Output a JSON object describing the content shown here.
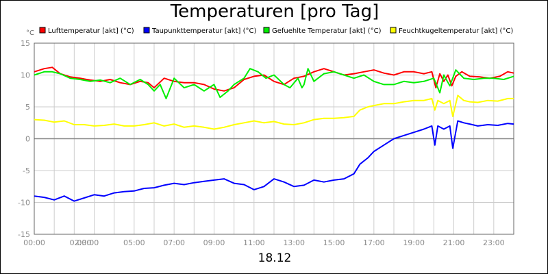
{
  "chart_data": {
    "type": "line",
    "title": "Temperaturen [pro Tag]",
    "subtitle": "18.12",
    "ylabel": "°C",
    "xlabel": "",
    "ylim": [
      -15,
      15
    ],
    "xlim": [
      0,
      24
    ],
    "yticks": [
      -15,
      -10,
      -5,
      0,
      5,
      10,
      15
    ],
    "xticks": [
      {
        "hour": 0,
        "label": "00:00"
      },
      {
        "hour": 2,
        "label": "02:00"
      },
      {
        "hour": 3,
        "label": "03:00"
      },
      {
        "hour": 5,
        "label": "05:00"
      },
      {
        "hour": 7,
        "label": "07:00"
      },
      {
        "hour": 9,
        "label": "09:00"
      },
      {
        "hour": 11,
        "label": "11:00"
      },
      {
        "hour": 13,
        "label": "13:00"
      },
      {
        "hour": 15,
        "label": "15:00"
      },
      {
        "hour": 17,
        "label": "17:00"
      },
      {
        "hour": 19,
        "label": "19:00"
      },
      {
        "hour": 21,
        "label": "21:00"
      },
      {
        "hour": 23,
        "label": "23:00"
      }
    ],
    "grid": true,
    "legend_position": "top",
    "series": [
      {
        "name": "Lufttemperatur [akt] (°C)",
        "color": "#ff0000",
        "x": [
          0,
          0.5,
          0.9,
          1.3,
          1.8,
          2.3,
          2.8,
          3.3,
          3.8,
          4.3,
          4.8,
          5.3,
          5.7,
          6.0,
          6.5,
          7.0,
          7.5,
          8.0,
          8.5,
          9.0,
          9.5,
          10.0,
          10.5,
          11.0,
          11.5,
          12.0,
          12.5,
          13.0,
          13.5,
          14.0,
          14.5,
          15.0,
          15.5,
          16.0,
          16.5,
          17.0,
          17.5,
          18.0,
          18.5,
          19.0,
          19.5,
          19.9,
          20.1,
          20.3,
          20.5,
          20.7,
          20.9,
          21.1,
          21.4,
          21.8,
          22.3,
          22.8,
          23.3,
          23.7,
          24.0
        ],
        "y": [
          10.5,
          11.0,
          11.2,
          10.2,
          9.7,
          9.5,
          9.2,
          9.0,
          9.3,
          8.8,
          8.5,
          9.0,
          8.8,
          8.0,
          9.5,
          9.0,
          8.8,
          8.8,
          8.5,
          7.8,
          7.5,
          8.0,
          9.3,
          9.8,
          10.0,
          9.0,
          8.5,
          9.5,
          9.8,
          10.5,
          11.0,
          10.5,
          10.0,
          10.2,
          10.5,
          10.8,
          10.3,
          10.0,
          10.5,
          10.5,
          10.2,
          10.5,
          8.0,
          10.2,
          9.0,
          10.0,
          8.3,
          9.8,
          10.5,
          9.8,
          9.7,
          9.5,
          9.8,
          10.5,
          10.3
        ]
      },
      {
        "name": "Taupunkttemperatur [akt] (°C)",
        "color": "#0000ff",
        "x": [
          0,
          0.5,
          1.0,
          1.5,
          2.0,
          2.5,
          3.0,
          3.5,
          4.0,
          4.5,
          5.0,
          5.5,
          6.0,
          6.5,
          7.0,
          7.5,
          8.0,
          8.5,
          9.0,
          9.5,
          10.0,
          10.5,
          11.0,
          11.5,
          12.0,
          12.5,
          13.0,
          13.5,
          14.0,
          14.5,
          15.0,
          15.5,
          16.0,
          16.3,
          16.7,
          17.0,
          17.5,
          18.0,
          18.5,
          19.0,
          19.5,
          19.9,
          20.05,
          20.2,
          20.5,
          20.8,
          20.95,
          21.2,
          21.5,
          21.8,
          22.2,
          22.7,
          23.2,
          23.7,
          24.0
        ],
        "y": [
          -9.0,
          -9.2,
          -9.6,
          -9.0,
          -9.8,
          -9.3,
          -8.8,
          -9.0,
          -8.5,
          -8.3,
          -8.2,
          -7.8,
          -7.7,
          -7.3,
          -7.0,
          -7.2,
          -6.9,
          -6.7,
          -6.5,
          -6.3,
          -7.0,
          -7.2,
          -8.0,
          -7.5,
          -6.3,
          -6.8,
          -7.5,
          -7.3,
          -6.5,
          -6.8,
          -6.5,
          -6.3,
          -5.5,
          -4.0,
          -3.0,
          -2.0,
          -1.0,
          0.0,
          0.5,
          1.0,
          1.5,
          2.0,
          -1.0,
          2.0,
          1.5,
          2.0,
          -1.5,
          2.8,
          2.5,
          2.3,
          2.0,
          2.2,
          2.1,
          2.4,
          2.3
        ]
      },
      {
        "name": "Gefuehlte Temperatur [akt] (°C)",
        "color": "#00ee00",
        "x": [
          0,
          0.5,
          0.9,
          1.3,
          1.8,
          2.3,
          2.8,
          3.3,
          3.8,
          4.3,
          4.8,
          5.3,
          5.7,
          6.0,
          6.3,
          6.6,
          7.0,
          7.5,
          8.0,
          8.5,
          9.0,
          9.3,
          9.7,
          10.0,
          10.5,
          10.8,
          11.2,
          11.6,
          12.0,
          12.5,
          12.8,
          13.2,
          13.4,
          13.5,
          13.7,
          14.0,
          14.5,
          15.0,
          15.5,
          16.0,
          16.5,
          17.0,
          17.5,
          18.0,
          18.5,
          19.0,
          19.5,
          20.0,
          20.3,
          20.5,
          20.8,
          21.1,
          21.5,
          22.0,
          22.5,
          23.0,
          23.5,
          24.0
        ],
        "y": [
          10.0,
          10.5,
          10.5,
          10.2,
          9.5,
          9.3,
          9.0,
          9.2,
          8.8,
          9.5,
          8.5,
          9.3,
          8.5,
          7.5,
          8.5,
          6.3,
          9.5,
          8.0,
          8.5,
          7.5,
          8.5,
          6.5,
          7.5,
          8.5,
          9.5,
          11.0,
          10.5,
          9.5,
          10.0,
          8.5,
          8.0,
          9.5,
          8.0,
          8.5,
          11.0,
          9.0,
          10.2,
          10.5,
          10.0,
          9.5,
          10.0,
          9.0,
          8.5,
          8.5,
          9.0,
          8.8,
          9.0,
          9.5,
          7.2,
          10.0,
          8.3,
          10.8,
          9.5,
          9.3,
          9.5,
          9.5,
          9.3,
          9.8
        ]
      },
      {
        "name": "Feuchtkugeltemperatur [akt] (°C)",
        "color": "#ffff00",
        "x": [
          0,
          0.5,
          1.0,
          1.5,
          2.0,
          2.5,
          3.0,
          3.5,
          4.0,
          4.5,
          5.0,
          5.5,
          6.0,
          6.5,
          7.0,
          7.5,
          8.0,
          8.5,
          9.0,
          9.5,
          10.0,
          10.5,
          11.0,
          11.5,
          12.0,
          12.5,
          13.0,
          13.5,
          14.0,
          14.5,
          15.0,
          15.5,
          16.0,
          16.3,
          16.7,
          17.0,
          17.5,
          18.0,
          18.5,
          19.0,
          19.5,
          19.9,
          20.05,
          20.2,
          20.5,
          20.8,
          20.95,
          21.2,
          21.5,
          21.8,
          22.2,
          22.7,
          23.2,
          23.7,
          24.0
        ],
        "y": [
          3.0,
          2.9,
          2.6,
          2.8,
          2.2,
          2.2,
          2.0,
          2.1,
          2.3,
          2.0,
          2.0,
          2.2,
          2.5,
          2.0,
          2.3,
          1.8,
          2.0,
          1.8,
          1.5,
          1.8,
          2.2,
          2.5,
          2.8,
          2.5,
          2.7,
          2.3,
          2.2,
          2.5,
          3.0,
          3.2,
          3.2,
          3.3,
          3.5,
          4.5,
          5.0,
          5.2,
          5.5,
          5.5,
          5.8,
          6.0,
          6.0,
          6.3,
          4.5,
          6.0,
          5.5,
          6.0,
          3.5,
          6.8,
          6.0,
          5.8,
          5.7,
          6.0,
          5.9,
          6.3,
          6.3
        ]
      }
    ]
  }
}
